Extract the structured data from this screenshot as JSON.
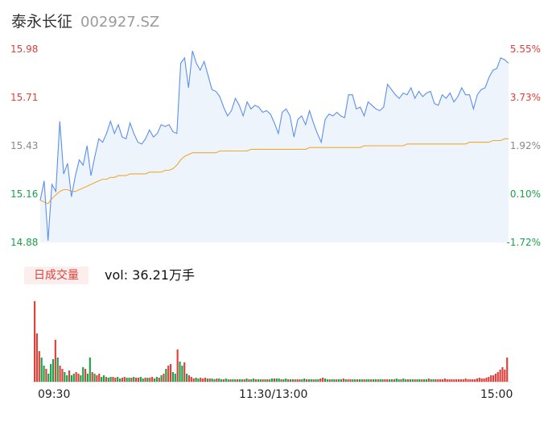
{
  "header": {
    "stock_name": "泰永长征",
    "stock_code": "002927.SZ"
  },
  "volume_panel": {
    "tag_label": "日成交量",
    "vol_label": "vol: 36.21万手"
  },
  "colors": {
    "up": "#e0403a",
    "down": "#1aa14a",
    "neutral": "#888888",
    "price_line": "#5b8ff0",
    "avg_line": "#f0a830",
    "area_fill": "#eef4fc"
  },
  "chart_data": [
    {
      "type": "line",
      "ylim": [
        14.88,
        15.98
      ],
      "y_ticks": [
        "15.98",
        "15.71",
        "15.43",
        "15.16",
        "14.88"
      ],
      "pct_ticks": [
        "5.55%",
        "3.73%",
        "1.92%",
        "0.10%",
        "-1.72%"
      ],
      "x_ticks": [
        "09:30",
        "11:30/13:00",
        "15:00"
      ],
      "series": [
        {
          "values": [
            15.12,
            15.23,
            14.89,
            15.21,
            15.17,
            15.57,
            15.27,
            15.33,
            15.14,
            15.26,
            15.35,
            15.32,
            15.43,
            15.26,
            15.37,
            15.47,
            15.45,
            15.5,
            15.57,
            15.5,
            15.55,
            15.48,
            15.47,
            15.56,
            15.5,
            15.45,
            15.44,
            15.47,
            15.52,
            15.48,
            15.5,
            15.55,
            15.54,
            15.55,
            15.51,
            15.5,
            15.9,
            15.93,
            15.76,
            15.97,
            15.9,
            15.86,
            15.91,
            15.83,
            15.75,
            15.74,
            15.71,
            15.65,
            15.6,
            15.63,
            15.7,
            15.66,
            15.6,
            15.68,
            15.64,
            15.66,
            15.65,
            15.62,
            15.63,
            15.61,
            15.56,
            15.5,
            15.62,
            15.64,
            15.6,
            15.48,
            15.58,
            15.6,
            15.55,
            15.63,
            15.56,
            15.5,
            15.45,
            15.58,
            15.61,
            15.6,
            15.62,
            15.6,
            15.59,
            15.72,
            15.72,
            15.64,
            15.65,
            15.6,
            15.68,
            15.66,
            15.64,
            15.63,
            15.65,
            15.78,
            15.75,
            15.72,
            15.7,
            15.73,
            15.72,
            15.76,
            15.7,
            15.74,
            15.71,
            15.73,
            15.74,
            15.67,
            15.66,
            15.72,
            15.7,
            15.73,
            15.68,
            15.71,
            15.76,
            15.72,
            15.72,
            15.64,
            15.72,
            15.75,
            15.76,
            15.82,
            15.86,
            15.87,
            15.93,
            15.92,
            15.9
          ]
        },
        {
          "values": [
            15.12,
            15.11,
            15.1,
            15.13,
            15.15,
            15.17,
            15.18,
            15.18,
            15.17,
            15.17,
            15.18,
            15.19,
            15.2,
            15.21,
            15.22,
            15.23,
            15.24,
            15.24,
            15.25,
            15.25,
            15.26,
            15.26,
            15.26,
            15.27,
            15.27,
            15.27,
            15.27,
            15.27,
            15.28,
            15.28,
            15.28,
            15.28,
            15.29,
            15.29,
            15.3,
            15.32,
            15.35,
            15.37,
            15.38,
            15.39,
            15.39,
            15.39,
            15.39,
            15.39,
            15.39,
            15.39,
            15.4,
            15.4,
            15.4,
            15.4,
            15.4,
            15.4,
            15.4,
            15.4,
            15.41,
            15.41,
            15.41,
            15.41,
            15.41,
            15.41,
            15.41,
            15.41,
            15.41,
            15.41,
            15.41,
            15.41,
            15.41,
            15.41,
            15.41,
            15.42,
            15.42,
            15.42,
            15.42,
            15.42,
            15.42,
            15.42,
            15.42,
            15.42,
            15.42,
            15.42,
            15.42,
            15.42,
            15.42,
            15.43,
            15.43,
            15.43,
            15.43,
            15.43,
            15.43,
            15.43,
            15.43,
            15.43,
            15.43,
            15.43,
            15.44,
            15.44,
            15.44,
            15.44,
            15.44,
            15.44,
            15.44,
            15.44,
            15.44,
            15.44,
            15.44,
            15.44,
            15.44,
            15.44,
            15.44,
            15.44,
            15.45,
            15.45,
            15.45,
            15.45,
            15.45,
            15.45,
            15.46,
            15.46,
            15.46,
            15.47,
            15.47
          ]
        }
      ]
    },
    {
      "type": "bar",
      "series": [
        {
          "values": [
            100,
            60,
            38,
            30,
            20,
            16,
            10,
            22,
            28,
            52,
            30,
            20,
            16,
            12,
            8,
            14,
            8,
            10,
            12,
            10,
            8,
            18,
            16,
            10,
            30,
            12,
            10,
            8,
            10,
            6,
            8,
            6,
            5,
            6,
            6,
            5,
            6,
            4,
            5,
            6,
            5,
            5,
            5,
            6,
            5,
            5,
            6,
            4,
            5,
            5,
            5,
            6,
            4,
            6,
            5,
            8,
            10,
            16,
            20,
            22,
            12,
            10,
            40,
            25,
            20,
            24,
            10,
            8,
            6,
            4,
            5,
            4,
            5,
            4,
            5,
            4,
            4,
            4,
            3,
            4,
            4,
            3,
            3,
            4,
            3,
            3,
            3,
            3,
            3,
            3,
            3,
            3,
            4,
            3,
            3,
            4,
            3,
            3,
            3,
            3,
            3,
            3,
            3,
            4,
            4,
            4,
            4,
            3,
            3,
            4,
            3,
            3,
            3,
            3,
            3,
            3,
            3,
            4,
            3,
            3,
            3,
            3,
            3,
            3,
            4,
            5,
            4,
            3,
            3,
            3,
            3,
            3,
            3,
            3,
            4,
            3,
            3,
            3,
            3,
            3,
            3,
            3,
            3,
            3,
            3,
            3,
            3,
            3,
            3,
            3,
            3,
            3,
            3,
            3,
            3,
            3,
            3,
            4,
            3,
            3,
            4,
            3,
            3,
            3,
            3,
            3,
            3,
            3,
            3,
            3,
            3,
            4,
            3,
            3,
            3,
            3,
            3,
            3,
            4,
            3,
            3,
            3,
            3,
            3,
            3,
            3,
            3,
            4,
            3,
            3,
            3,
            3,
            4,
            5,
            4,
            4,
            5,
            6,
            8,
            8,
            10,
            12,
            15,
            18,
            15,
            30
          ]
        },
        {
          "dirs": "uuudduddduduuddudduuddudduduuddudduudduudduduudduduuddududuuddudduduuudduuududdudduddudduddududduddududdudduddududuudduddudduudduddudduduudduddudduddudduudduddudduddudduddudduuuuuuuuuu"
        }
      ]
    }
  ]
}
